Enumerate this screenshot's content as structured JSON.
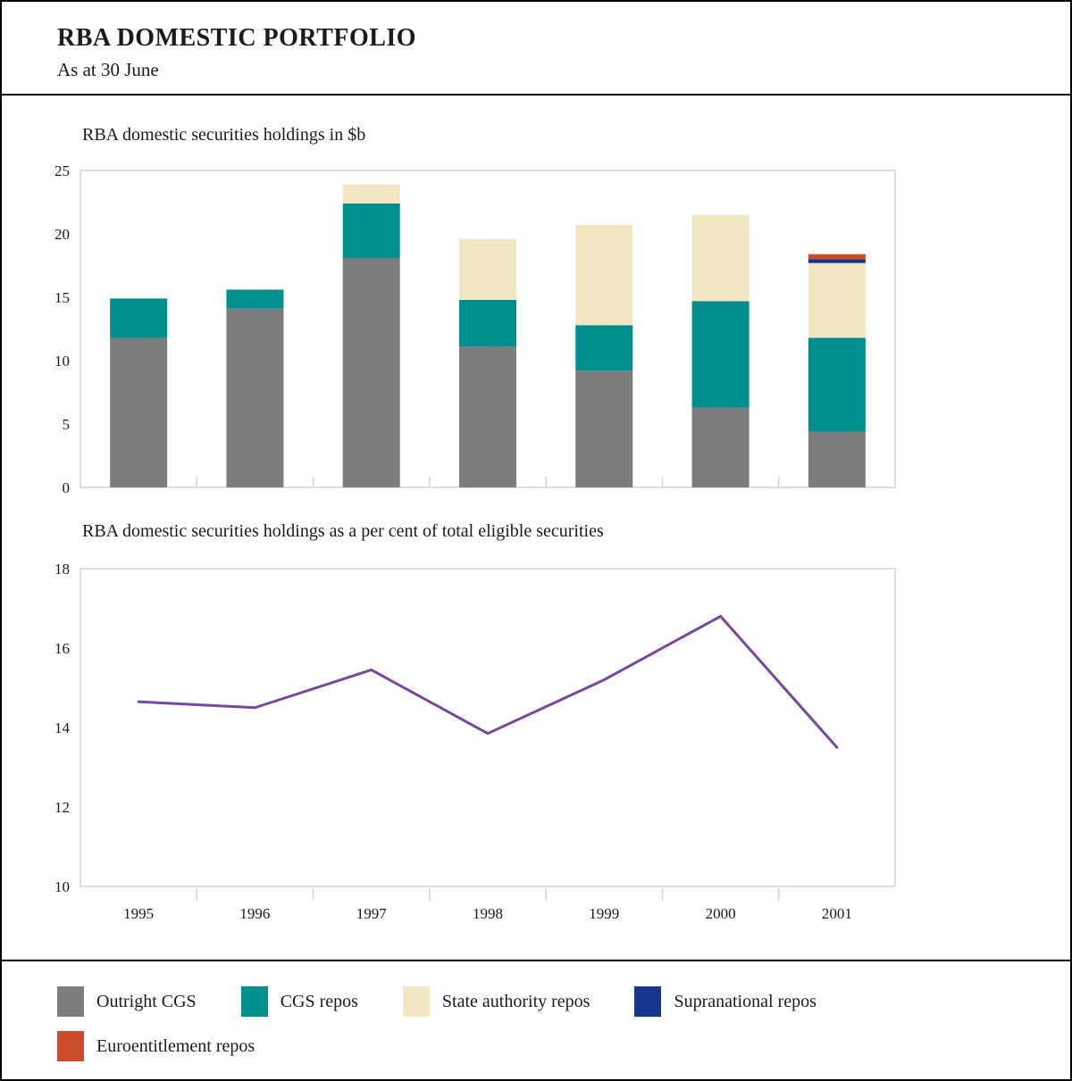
{
  "header": {
    "title": "RBA DOMESTIC PORTFOLIO",
    "subtitle": "As at 30 June"
  },
  "chart_data": [
    {
      "type": "bar",
      "stacked": true,
      "title": "RBA domestic securities holdings in $b",
      "categories": [
        "1995",
        "1996",
        "1997",
        "1998",
        "1999",
        "2000",
        "2001"
      ],
      "series": [
        {
          "name": "Outright CGS",
          "color": "#7c7d7f",
          "values": [
            11.8,
            14.1,
            18.1,
            11.1,
            9.2,
            6.3,
            4.4
          ]
        },
        {
          "name": "CGS repos",
          "color": "#008f8f",
          "values": [
            3.1,
            1.5,
            4.3,
            3.7,
            3.6,
            8.4,
            7.4
          ]
        },
        {
          "name": "State authority repos",
          "color": "#f1e7c2",
          "values": [
            0,
            0,
            1.5,
            4.8,
            7.9,
            6.8,
            5.9
          ]
        },
        {
          "name": "Supranational repos",
          "color": "#16368c",
          "values": [
            0,
            0,
            0,
            0,
            0,
            0,
            0.3
          ]
        },
        {
          "name": "Euroentitlement repos",
          "color": "#c94d29",
          "values": [
            0,
            0,
            0,
            0,
            0,
            0,
            0.4
          ]
        }
      ],
      "ylim": [
        0,
        25
      ],
      "yticks": [
        0,
        5,
        10,
        15,
        20,
        25
      ],
      "grid": false,
      "x_labels_shown": false,
      "legend_position": "bottom"
    },
    {
      "type": "line",
      "title": "RBA domestic securities holdings as a per cent of total eligible securities",
      "categories": [
        "1995",
        "1996",
        "1997",
        "1998",
        "1999",
        "2000",
        "2001"
      ],
      "values": [
        14.65,
        14.5,
        15.45,
        13.85,
        15.2,
        16.8,
        13.5
      ],
      "color": "#77489b",
      "ylim": [
        10,
        18
      ],
      "yticks": [
        10,
        12,
        14,
        16,
        18
      ],
      "grid": false,
      "x_labels_shown": true
    }
  ],
  "legend": {
    "items": [
      {
        "label": "Outright CGS",
        "color": "#7c7d7f"
      },
      {
        "label": "CGS repos",
        "color": "#008f8f"
      },
      {
        "label": "State authority repos",
        "color": "#f1e7c2"
      },
      {
        "label": "Supranational repos",
        "color": "#16368c"
      },
      {
        "label": "Euroentitlement repos",
        "color": "#c94d29"
      }
    ]
  }
}
